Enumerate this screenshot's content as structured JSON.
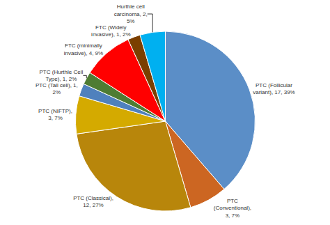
{
  "chart_data": {
    "type": "pie",
    "categories": [
      "PTC (Follicular\nvariant), 17, 39%",
      "PTC\n(Conventional),\n3, 7%",
      "PTC (Classical),\n12, 27%",
      "PTC (NIFTP),\n3, 7%",
      "PTC (Tall cell), 1,\n2%",
      "PTC (Hurthle Cell\nType), 1, 2%",
      "FTC (minimally\ninvasive), 4, 9%",
      "FTC (Widely\ninvasive), 1, 2%",
      "Hurthle cell\ncarcinoma, 2,\n5%"
    ],
    "values": [
      17,
      3,
      12,
      3,
      1,
      1,
      4,
      1,
      2
    ],
    "colors": [
      "#5B8EC7",
      "#CC6622",
      "#B8860B",
      "#D4AA00",
      "#4F81BD",
      "#4E7C33",
      "#FF0000",
      "#7B3F00",
      "#00B0F0"
    ]
  }
}
